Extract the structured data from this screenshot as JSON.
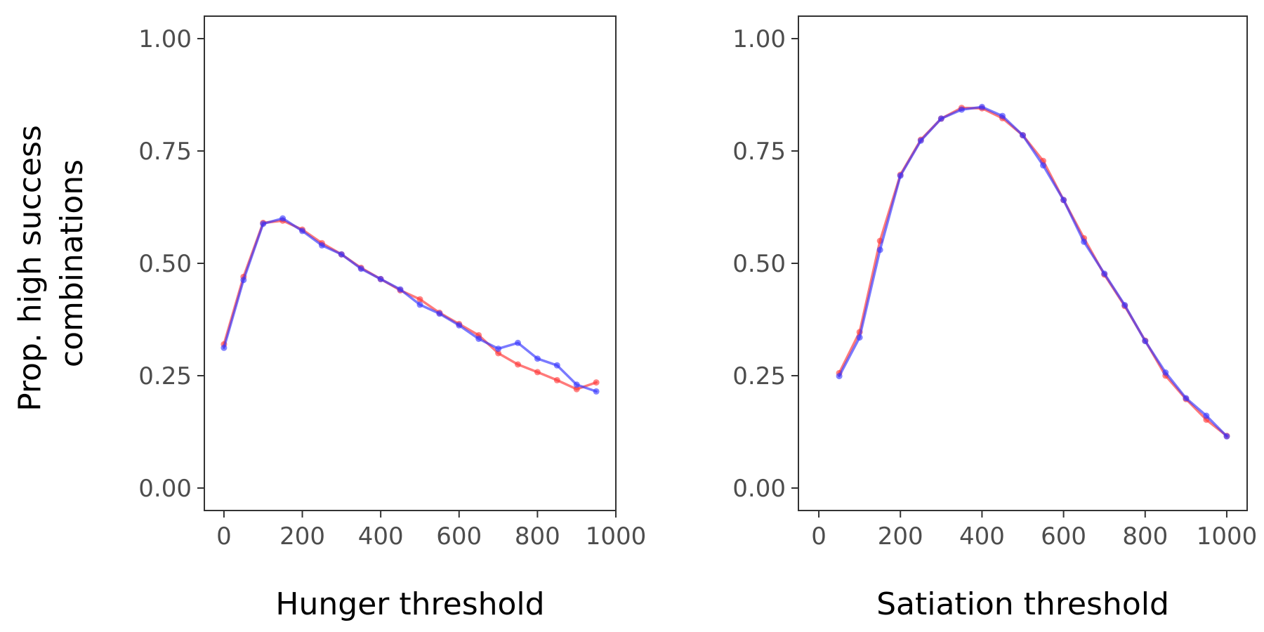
{
  "ylabel_lines": [
    "Prop. high success",
    "combinations"
  ],
  "colors": {
    "series_red": "#ff3333",
    "series_blue": "#3333ff"
  },
  "chart_data": [
    {
      "type": "line",
      "xlabel": "Hunger threshold",
      "ylabel": "Prop. high success combinations",
      "xlim": [
        -50,
        1000
      ],
      "ylim": [
        -0.05,
        1.05
      ],
      "xticks": [
        0,
        200,
        400,
        600,
        800,
        1000
      ],
      "xtick_labels": [
        "0",
        "200",
        "400",
        "600",
        "800",
        "1000"
      ],
      "yticks": [
        0,
        0.25,
        0.5,
        0.75,
        1
      ],
      "ytick_labels": [
        "0.00",
        "0.25",
        "0.50",
        "0.75",
        "1.00"
      ],
      "grid": false,
      "legend": "none",
      "x": [
        0,
        50,
        100,
        150,
        200,
        250,
        300,
        350,
        400,
        450,
        500,
        550,
        600,
        650,
        700,
        750,
        800,
        850,
        900,
        950
      ],
      "series": [
        {
          "color": "#ff3333",
          "values": [
            0.32,
            0.47,
            0.59,
            0.595,
            0.575,
            0.545,
            0.52,
            0.49,
            0.465,
            0.44,
            0.42,
            0.39,
            0.365,
            0.34,
            0.3,
            0.275,
            0.258,
            0.24,
            0.22,
            0.235
          ]
        },
        {
          "color": "#3333ff",
          "values": [
            0.312,
            0.463,
            0.588,
            0.6,
            0.572,
            0.54,
            0.52,
            0.488,
            0.465,
            0.442,
            0.408,
            0.388,
            0.362,
            0.332,
            0.31,
            0.323,
            0.288,
            0.273,
            0.23,
            0.215
          ]
        }
      ]
    },
    {
      "type": "line",
      "xlabel": "Satiation threshold",
      "ylabel": "Prop. high success combinations",
      "xlim": [
        -50,
        1050
      ],
      "ylim": [
        -0.05,
        1.05
      ],
      "xticks": [
        0,
        200,
        400,
        600,
        800,
        1000
      ],
      "xtick_labels": [
        "0",
        "200",
        "400",
        "600",
        "800",
        "1000"
      ],
      "yticks": [
        0,
        0.25,
        0.5,
        0.75,
        1
      ],
      "ytick_labels": [
        "0.00",
        "0.25",
        "0.50",
        "0.75",
        "1.00"
      ],
      "grid": false,
      "legend": "none",
      "x": [
        50,
        100,
        150,
        200,
        250,
        300,
        350,
        400,
        450,
        500,
        550,
        600,
        650,
        700,
        750,
        800,
        850,
        900,
        950,
        1000
      ],
      "series": [
        {
          "color": "#ff3333",
          "values": [
            0.256,
            0.347,
            0.55,
            0.697,
            0.775,
            0.822,
            0.846,
            0.845,
            0.823,
            0.785,
            0.728,
            0.641,
            0.556,
            0.475,
            0.405,
            0.328,
            0.25,
            0.198,
            0.152,
            0.116
          ]
        },
        {
          "color": "#3333ff",
          "values": [
            0.249,
            0.335,
            0.53,
            0.695,
            0.773,
            0.822,
            0.842,
            0.848,
            0.828,
            0.785,
            0.718,
            0.641,
            0.548,
            0.477,
            0.407,
            0.327,
            0.257,
            0.2,
            0.161,
            0.115
          ]
        }
      ]
    }
  ]
}
